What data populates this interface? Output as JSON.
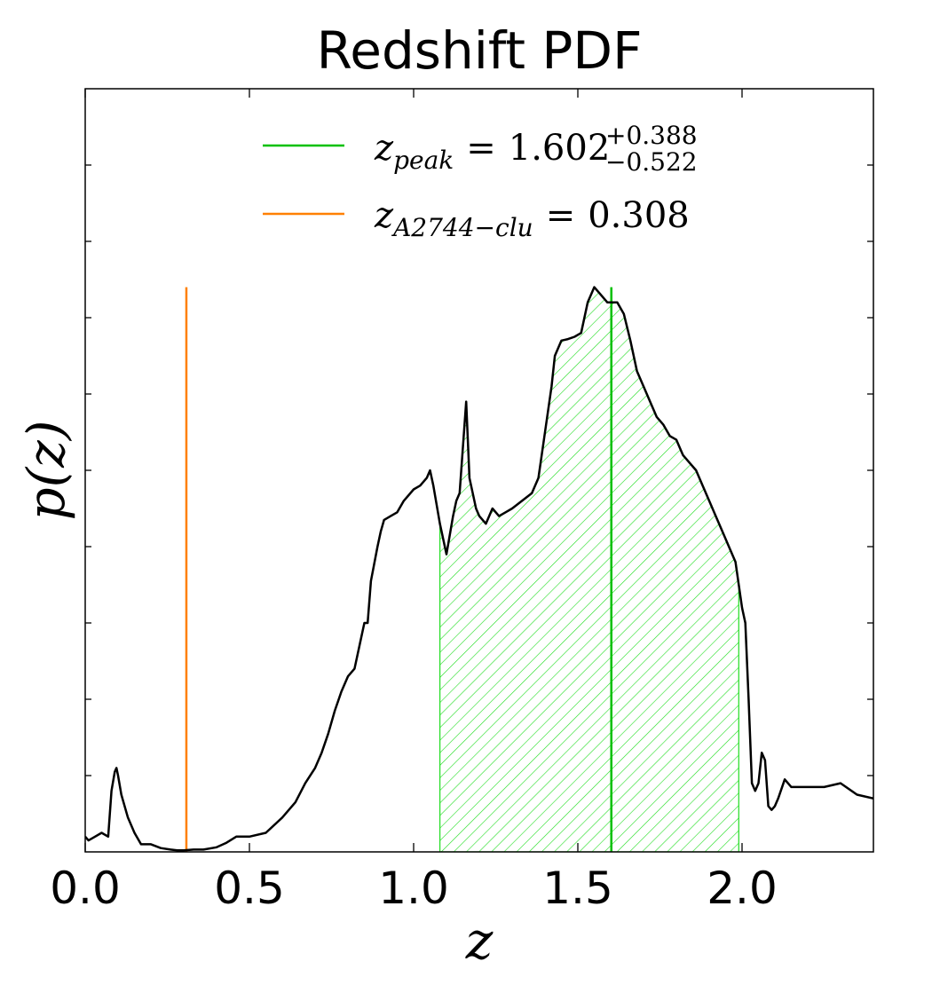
{
  "chart_data": {
    "type": "line",
    "title": "Redshift PDF",
    "xlabel": "z",
    "ylabel": "p(z)",
    "xlim": [
      0.0,
      2.4
    ],
    "ylim": [
      0,
      1.0
    ],
    "x_ticks": [
      0.0,
      0.5,
      1.0,
      1.5,
      2.0
    ],
    "x_tick_labels": [
      "0.0",
      "0.5",
      "1.0",
      "1.5",
      "2.0"
    ],
    "y_ticks": [
      0.1,
      0.2,
      0.3,
      0.4,
      0.5,
      0.6,
      0.7,
      0.8,
      0.9
    ],
    "y_tick_labels_shown": false,
    "grid": false,
    "legend_position": "top-center",
    "series": [
      {
        "name": "p(z)",
        "color": "#000000",
        "x": [
          0.0,
          0.01,
          0.03,
          0.05,
          0.07,
          0.08,
          0.09,
          0.095,
          0.1,
          0.11,
          0.13,
          0.15,
          0.17,
          0.2,
          0.23,
          0.26,
          0.28,
          0.3,
          0.33,
          0.36,
          0.4,
          0.43,
          0.46,
          0.5,
          0.55,
          0.6,
          0.64,
          0.67,
          0.7,
          0.72,
          0.74,
          0.76,
          0.78,
          0.8,
          0.82,
          0.84,
          0.85,
          0.86,
          0.87,
          0.89,
          0.9,
          0.91,
          0.93,
          0.95,
          0.97,
          1.0,
          1.02,
          1.04,
          1.05,
          1.06,
          1.08,
          1.1,
          1.12,
          1.13,
          1.14,
          1.15,
          1.16,
          1.17,
          1.19,
          1.2,
          1.22,
          1.24,
          1.26,
          1.28,
          1.3,
          1.33,
          1.36,
          1.38,
          1.4,
          1.42,
          1.43,
          1.45,
          1.47,
          1.49,
          1.51,
          1.53,
          1.55,
          1.57,
          1.59,
          1.62,
          1.64,
          1.66,
          1.68,
          1.7,
          1.72,
          1.74,
          1.76,
          1.78,
          1.8,
          1.82,
          1.84,
          1.86,
          1.88,
          1.9,
          1.92,
          1.94,
          1.96,
          1.98,
          1.99,
          2.0,
          2.01,
          2.02,
          2.03,
          2.04,
          2.05,
          2.06,
          2.07,
          2.08,
          2.09,
          2.1,
          2.11,
          2.13,
          2.15,
          2.17,
          2.2,
          2.25,
          2.3,
          2.35,
          2.4
        ],
        "y": [
          0.02,
          0.015,
          0.02,
          0.025,
          0.02,
          0.08,
          0.105,
          0.11,
          0.1,
          0.075,
          0.045,
          0.025,
          0.01,
          0.01,
          0.005,
          0.003,
          0.002,
          0.002,
          0.003,
          0.003,
          0.006,
          0.012,
          0.02,
          0.02,
          0.025,
          0.045,
          0.065,
          0.09,
          0.11,
          0.13,
          0.155,
          0.185,
          0.21,
          0.23,
          0.24,
          0.28,
          0.3,
          0.3,
          0.355,
          0.4,
          0.42,
          0.435,
          0.44,
          0.445,
          0.46,
          0.475,
          0.48,
          0.49,
          0.5,
          0.48,
          0.43,
          0.39,
          0.44,
          0.46,
          0.47,
          0.53,
          0.59,
          0.49,
          0.45,
          0.44,
          0.43,
          0.45,
          0.44,
          0.445,
          0.45,
          0.46,
          0.47,
          0.49,
          0.55,
          0.61,
          0.65,
          0.67,
          0.672,
          0.675,
          0.68,
          0.72,
          0.74,
          0.73,
          0.72,
          0.72,
          0.705,
          0.67,
          0.63,
          0.61,
          0.59,
          0.57,
          0.56,
          0.545,
          0.54,
          0.52,
          0.51,
          0.5,
          0.48,
          0.46,
          0.44,
          0.42,
          0.4,
          0.38,
          0.35,
          0.32,
          0.3,
          0.2,
          0.09,
          0.08,
          0.09,
          0.13,
          0.12,
          0.06,
          0.055,
          0.06,
          0.07,
          0.095,
          0.085,
          0.085,
          0.085,
          0.085,
          0.09,
          0.075,
          0.07
        ]
      },
      {
        "name": "z_peak",
        "color": "#00c000",
        "type": "vline",
        "value": 1.602,
        "plus_error": 0.388,
        "minus_error": 0.522,
        "shaded_range": [
          1.08,
          1.99
        ],
        "hatch": "diagonal"
      },
      {
        "name": "z_A2744-clu",
        "color": "#ff8000",
        "type": "vline",
        "value": 0.308
      }
    ],
    "legend": [
      {
        "label": "z_{peak} = 1.602^{+0.388}_{-0.522}",
        "color": "#00c000"
      },
      {
        "label": "z_{A2744-clu} = 0.308",
        "color": "#ff8000"
      }
    ]
  },
  "legend_text": {
    "peak_symbol": "z",
    "peak_sub": "peak",
    "peak_value": "1.602",
    "peak_plus": "+0.388",
    "peak_minus": "−0.522",
    "clu_symbol": "z",
    "clu_sub": "A2744−clu",
    "clu_value": "0.308",
    "equals": "="
  },
  "ylabel_display": "p(z)"
}
